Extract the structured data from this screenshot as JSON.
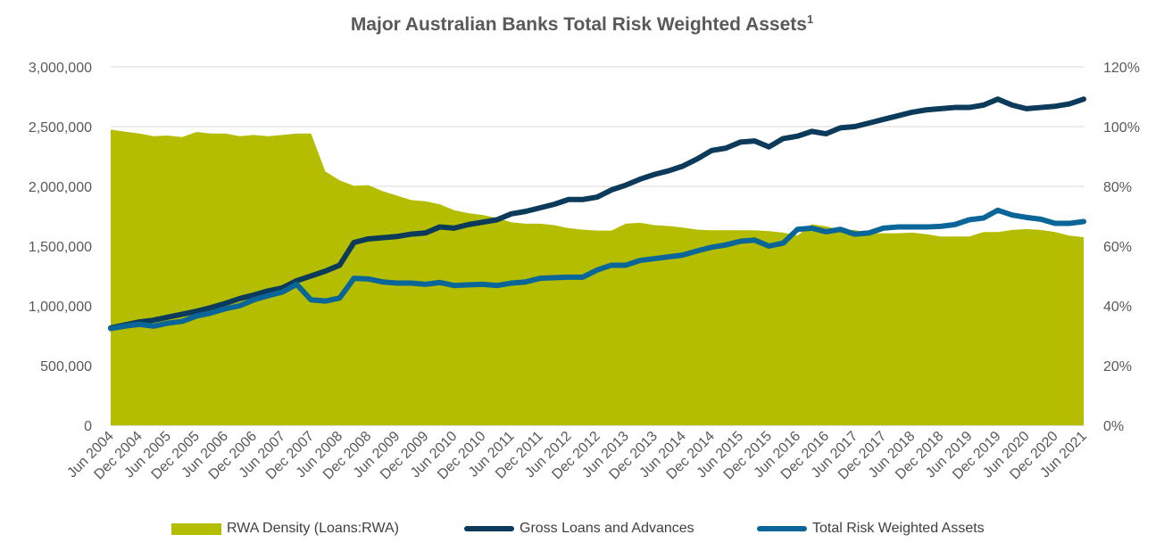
{
  "chart_data": {
    "type": "line",
    "title": "Major Australian Banks Total Risk Weighted Assets",
    "title_superscript": "1",
    "categories": [
      "Jun 2004",
      "Dec 2004",
      "Jun 2005",
      "Dec 2005",
      "Jun 2006",
      "Dec 2006",
      "Jun 2007",
      "Dec 2007",
      "Jun 2008",
      "Dec 2008",
      "Jun 2009",
      "Dec 2009",
      "Jun 2010",
      "Dec 2010",
      "Jun 2011",
      "Dec 2011",
      "Jun 2012",
      "Dec 2012",
      "Jun 2013",
      "Dec 2013",
      "Jun 2014",
      "Dec 2014",
      "Jun 2015",
      "Dec 2015",
      "Jun 2016",
      "Dec 2016",
      "Jun 2017",
      "Dec 2017",
      "Jun 2018",
      "Dec 2018",
      "Jun 2019",
      "Dec 2019",
      "Jun 2020",
      "Dec 2020",
      "Jun 2021"
    ],
    "left_axis": {
      "min": 0,
      "max": 3000000,
      "ticks": [
        "0",
        "500,000",
        "1,000,000",
        "1,500,000",
        "2,000,000",
        "2,500,000",
        "3,000,000"
      ]
    },
    "right_axis": {
      "min": 0,
      "max": 120,
      "ticks": [
        "0%",
        "20%",
        "40%",
        "60%",
        "80%",
        "100%",
        "120%"
      ]
    },
    "grid": true,
    "legend_position": "bottom",
    "series": [
      {
        "name": "RWA Density (Loans:RWA)",
        "kind": "area",
        "axis": "right",
        "color": "#b5bd00",
        "x": [
          0,
          0.5,
          1,
          1.5,
          2,
          2.5,
          3,
          3.5,
          4,
          4.5,
          5,
          5.5,
          6,
          6.5,
          7,
          7.5,
          8,
          8.5,
          9,
          9.5,
          10,
          10.5,
          11,
          11.5,
          12,
          12.5,
          13,
          13.5,
          14,
          14.5,
          15,
          15.5,
          16,
          16.5,
          17,
          17.5,
          18,
          18.5,
          19,
          19.5,
          20,
          20.5,
          21,
          21.5,
          22,
          22.5,
          23,
          23.5,
          24,
          24.5,
          25,
          25.5,
          26,
          26.5,
          27,
          27.5,
          28,
          28.5,
          29,
          29.5,
          30,
          30.5,
          31,
          31.5,
          32,
          32.5,
          33,
          33.5,
          34
        ],
        "values": [
          99,
          98.3,
          97.7,
          96.8,
          97,
          96.5,
          98.2,
          97.7,
          97.7,
          96.8,
          97.2,
          96.8,
          97.2,
          97.7,
          97.7,
          85,
          82,
          80.2,
          80.4,
          78.4,
          76.9,
          75.4,
          75,
          74,
          72,
          71,
          70.4,
          69.4,
          68,
          67.5,
          67.5,
          67,
          66,
          65.5,
          65.2,
          65.2,
          67.5,
          67.8,
          67,
          66.7,
          66.2,
          65.5,
          65.3,
          65.3,
          65.3,
          65.3,
          65,
          64.5,
          63.5,
          67.3,
          66.6,
          65.4,
          65.4,
          64.3,
          64.3,
          64.3,
          64.5,
          64,
          63.2,
          63.2,
          63.2,
          64.7,
          64.7,
          65.4,
          65.7,
          65.4,
          64.7,
          63.5,
          63
        ]
      },
      {
        "name": "Gross Loans and Advances",
        "kind": "line",
        "axis": "left",
        "color": "#0b3a5b",
        "x": [
          0,
          0.5,
          1,
          1.5,
          2,
          2.5,
          3,
          3.5,
          4,
          4.5,
          5,
          5.5,
          6,
          6.5,
          7,
          7.5,
          8,
          8.5,
          9,
          9.5,
          10,
          10.5,
          11,
          11.5,
          12,
          12.5,
          13,
          13.5,
          14,
          14.5,
          15,
          15.5,
          16,
          16.5,
          17,
          17.5,
          18,
          18.5,
          19,
          19.5,
          20,
          20.5,
          21,
          21.5,
          22,
          22.5,
          23,
          23.5,
          24,
          24.5,
          25,
          25.5,
          26,
          26.5,
          27,
          27.5,
          28,
          28.5,
          29,
          29.5,
          30,
          30.5,
          31,
          31.5,
          32,
          32.5,
          33,
          33.5,
          34
        ],
        "values": [
          815000,
          840000,
          865000,
          880000,
          905000,
          930000,
          955000,
          985000,
          1020000,
          1060000,
          1090000,
          1125000,
          1150000,
          1210000,
          1250000,
          1290000,
          1340000,
          1530000,
          1560000,
          1570000,
          1580000,
          1600000,
          1610000,
          1660000,
          1650000,
          1680000,
          1700000,
          1720000,
          1770000,
          1790000,
          1820000,
          1850000,
          1890000,
          1890000,
          1910000,
          1970000,
          2010000,
          2060000,
          2100000,
          2130000,
          2170000,
          2230000,
          2300000,
          2320000,
          2370000,
          2380000,
          2330000,
          2400000,
          2420000,
          2460000,
          2440000,
          2490000,
          2500000,
          2530000,
          2560000,
          2590000,
          2620000,
          2640000,
          2650000,
          2660000,
          2660000,
          2680000,
          2730000,
          2680000,
          2650000,
          2660000,
          2670000,
          2690000,
          2730000
        ]
      },
      {
        "name": "Total Risk Weighted Assets",
        "kind": "line",
        "axis": "left",
        "color": "#0a6698",
        "x": [
          0,
          0.5,
          1,
          1.5,
          2,
          2.5,
          3,
          3.5,
          4,
          4.5,
          5,
          5.5,
          6,
          6.5,
          7,
          7.5,
          8,
          8.5,
          9,
          9.5,
          10,
          10.5,
          11,
          11.5,
          12,
          12.5,
          13,
          13.5,
          14,
          14.5,
          15,
          15.5,
          16,
          16.5,
          17,
          17.5,
          18,
          18.5,
          19,
          19.5,
          20,
          20.5,
          21,
          21.5,
          22,
          22.5,
          23,
          23.5,
          24,
          24.5,
          25,
          25.5,
          26,
          26.5,
          27,
          27.5,
          28,
          28.5,
          29,
          29.5,
          30,
          30.5,
          31,
          31.5,
          32,
          32.5,
          33,
          33.5,
          34
        ],
        "values": [
          810000,
          830000,
          845000,
          830000,
          855000,
          870000,
          915000,
          940000,
          975000,
          1000000,
          1050000,
          1085000,
          1115000,
          1180000,
          1050000,
          1040000,
          1065000,
          1230000,
          1225000,
          1200000,
          1190000,
          1190000,
          1180000,
          1195000,
          1170000,
          1175000,
          1180000,
          1170000,
          1190000,
          1200000,
          1230000,
          1235000,
          1240000,
          1240000,
          1300000,
          1340000,
          1340000,
          1380000,
          1395000,
          1410000,
          1425000,
          1460000,
          1490000,
          1510000,
          1540000,
          1550000,
          1500000,
          1525000,
          1640000,
          1650000,
          1620000,
          1640000,
          1600000,
          1610000,
          1650000,
          1660000,
          1660000,
          1660000,
          1665000,
          1680000,
          1720000,
          1735000,
          1800000,
          1760000,
          1740000,
          1725000,
          1690000,
          1690000,
          1705000
        ]
      }
    ]
  }
}
